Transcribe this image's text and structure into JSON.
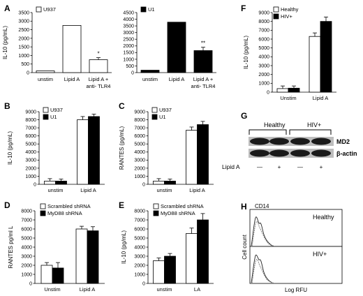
{
  "panels": {
    "A": "A",
    "B": "B",
    "C": "C",
    "D": "D",
    "E": "E",
    "F": "F",
    "G": "G",
    "H": "H"
  },
  "chart_data": [
    {
      "id": "A1",
      "type": "bar",
      "ylabel": "IL-10 (pg/mL)",
      "ylim": [
        0,
        3500
      ],
      "yticks": [
        0,
        500,
        1000,
        1500,
        2000,
        2500,
        3000,
        3500
      ],
      "categories": [
        "unstim",
        "Lipid A",
        "Lipid A + anti- TLR4"
      ],
      "series": [
        {
          "name": "U937",
          "values": [
            100,
            2750,
            750
          ],
          "errors": [
            0,
            0,
            120
          ],
          "color": "#ffffff"
        }
      ],
      "annotations": [
        {
          "category": 2,
          "text": "*"
        }
      ]
    },
    {
      "id": "A2",
      "type": "bar",
      "ylabel": "",
      "ylim": [
        0,
        4500
      ],
      "yticks": [
        0,
        500,
        1000,
        1500,
        2000,
        2500,
        3000,
        3500,
        4000,
        4500
      ],
      "categories": [
        "unstim",
        "Lipid A",
        "Lipid A + anti- TLR4"
      ],
      "series": [
        {
          "name": "U1",
          "values": [
            180,
            3780,
            1650
          ],
          "errors": [
            0,
            0,
            250
          ],
          "color": "#000000"
        }
      ],
      "annotations": [
        {
          "category": 2,
          "text": "**"
        }
      ]
    },
    {
      "id": "B",
      "type": "bar",
      "ylabel": "IL-10 (pg/mL)",
      "ylim": [
        0,
        9000
      ],
      "yticks": [
        0,
        1000,
        2000,
        3000,
        4000,
        5000,
        6000,
        7000,
        8000,
        9000
      ],
      "categories": [
        "unstim",
        "Lipid A"
      ],
      "series": [
        {
          "name": "U937",
          "values": [
            400,
            8000
          ],
          "errors": [
            300,
            400
          ],
          "color": "#ffffff"
        },
        {
          "name": "U1",
          "values": [
            400,
            8400
          ],
          "errors": [
            250,
            300
          ],
          "color": "#000000"
        }
      ]
    },
    {
      "id": "C",
      "type": "bar",
      "ylabel": "RANTES (pg/mL)",
      "ylim": [
        0,
        9000
      ],
      "yticks": [
        0,
        1000,
        2000,
        3000,
        4000,
        5000,
        6000,
        7000,
        8000,
        9000
      ],
      "categories": [
        "unstim",
        "Lipid A"
      ],
      "series": [
        {
          "name": "U937",
          "values": [
            400,
            6700
          ],
          "errors": [
            300,
            400
          ],
          "color": "#ffffff"
        },
        {
          "name": "U1",
          "values": [
            400,
            7400
          ],
          "errors": [
            250,
            400
          ],
          "color": "#000000"
        }
      ]
    },
    {
      "id": "D",
      "type": "bar",
      "ylabel": "RANTES pg/ml L",
      "ylim": [
        0,
        8000
      ],
      "yticks": [
        0,
        1000,
        2000,
        3000,
        4000,
        5000,
        6000,
        7000,
        8000
      ],
      "categories": [
        "Unstim",
        "Lipid A"
      ],
      "series": [
        {
          "name": "Scrambled shRNA",
          "values": [
            2000,
            6000
          ],
          "errors": [
            300,
            300
          ],
          "color": "#ffffff"
        },
        {
          "name": "MyD88 shRNA",
          "values": [
            1700,
            5800
          ],
          "errors": [
            600,
            450
          ],
          "color": "#000000"
        }
      ]
    },
    {
      "id": "E",
      "type": "bar",
      "ylabel": "IL-10 (pg/mL)",
      "ylim": [
        0,
        8000
      ],
      "yticks": [
        0,
        1000,
        2000,
        3000,
        4000,
        5000,
        6000,
        7000,
        8000
      ],
      "categories": [
        "unstim",
        "LA"
      ],
      "series": [
        {
          "name": "Scrambled shRNA",
          "values": [
            2500,
            5500
          ],
          "errors": [
            300,
            600
          ],
          "color": "#ffffff"
        },
        {
          "name": "MyD88 shRNA",
          "values": [
            3000,
            7000
          ],
          "errors": [
            300,
            700
          ],
          "color": "#000000"
        }
      ]
    },
    {
      "id": "F",
      "type": "bar",
      "ylabel": "IL-10 (pg/mL)",
      "ylim": [
        0,
        9000
      ],
      "yticks": [
        0,
        1000,
        2000,
        3000,
        4000,
        5000,
        6000,
        7000,
        8000,
        9000
      ],
      "categories": [
        "Unstim",
        "Lipid A"
      ],
      "series": [
        {
          "name": "Healthy",
          "values": [
            400,
            6300
          ],
          "errors": [
            300,
            400
          ],
          "color": "#ffffff"
        },
        {
          "name": "HIV+",
          "values": [
            450,
            8000
          ],
          "errors": [
            250,
            500
          ],
          "color": "#000000"
        }
      ]
    }
  ],
  "western": {
    "groups": [
      "Healthy",
      "HIV+"
    ],
    "bands": [
      "MD2",
      "β-actin"
    ],
    "treatment_label": "Lipid A",
    "lanes": [
      "—",
      "+",
      "—",
      "+"
    ]
  },
  "flow": {
    "marker": "CD14",
    "panels": [
      "Healthy",
      "HIV+"
    ],
    "ylabel": "Cell count",
    "xlabel": "Log RFU"
  }
}
